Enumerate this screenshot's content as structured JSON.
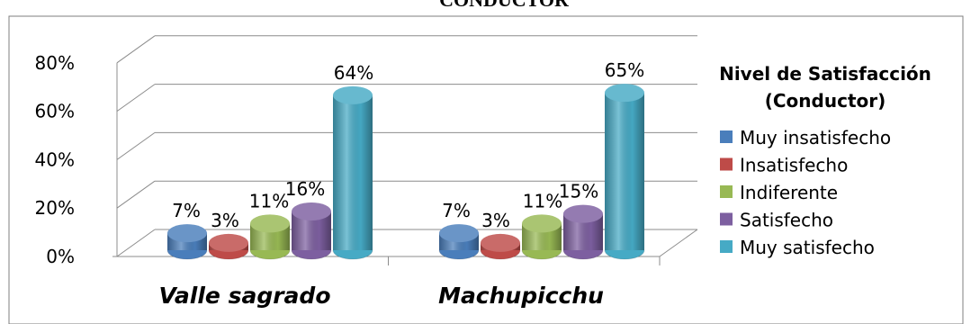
{
  "chart_data": {
    "type": "bar",
    "title": "CONDUCTOR",
    "categories": [
      "Valle sagrado",
      "Machupicchu"
    ],
    "series": [
      {
        "name": "Muy insatisfecho",
        "color": "#4a7ebb",
        "values": [
          7,
          7
        ]
      },
      {
        "name": "Insatisfecho",
        "color": "#be4b48",
        "values": [
          3,
          3
        ]
      },
      {
        "name": "Indiferente",
        "color": "#98b954",
        "values": [
          11,
          11
        ]
      },
      {
        "name": "Satisfecho",
        "color": "#7d5fa0",
        "values": [
          16,
          15
        ]
      },
      {
        "name": "Muy satisfecho",
        "color": "#46aac5",
        "values": [
          64,
          65
        ]
      }
    ],
    "data_labels": [
      [
        "7%",
        "3%",
        "11%",
        "16%",
        "64%"
      ],
      [
        "7%",
        "3%",
        "11%",
        "15%",
        "65%"
      ]
    ],
    "ylim": [
      0,
      80
    ],
    "yticks": [
      "0%",
      "20%",
      "40%",
      "60%",
      "80%"
    ],
    "grid": true,
    "legend": {
      "title_line1": "Nivel de Satisfacción",
      "title_line2": "(Conductor)",
      "placement": "right"
    }
  }
}
